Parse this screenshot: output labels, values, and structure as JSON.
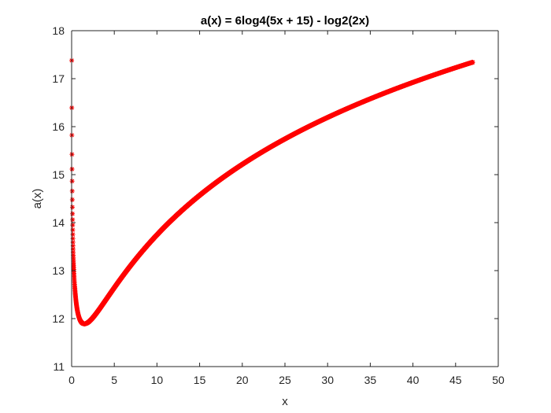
{
  "colors": {
    "series": "#ff0000",
    "axes": "#262626",
    "background": "#ffffff"
  },
  "chart_data": {
    "type": "scatter",
    "title": "a(x) = 6log4(5x + 15) - log2(2x)",
    "xlabel": "x",
    "ylabel": "a(x)",
    "xlim": [
      0,
      50
    ],
    "ylim": [
      11,
      18
    ],
    "xticks": [
      0,
      5,
      10,
      15,
      20,
      25,
      30,
      35,
      40,
      45,
      50
    ],
    "yticks": [
      11,
      12,
      13,
      14,
      15,
      16,
      17,
      18
    ],
    "grid": false,
    "legend": "none",
    "marker": "asterisk",
    "series": [
      {
        "function": "6*log4(5x + 15) - log2(2x)",
        "x_start": 0.01,
        "x_end": 47,
        "x_step": 0.01,
        "color": "#ff0000"
      }
    ]
  }
}
